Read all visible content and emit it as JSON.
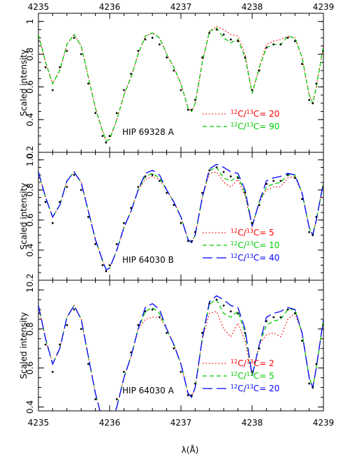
{
  "chart_data": {
    "type": "line",
    "xlabel": "λ(Å)",
    "ylabel": "Scaled intensity",
    "x_ticks": [
      "4235",
      "4236",
      "4237",
      "4238",
      "4239"
    ],
    "xlim": [
      4235,
      4239
    ],
    "panels": [
      {
        "label": "HIP 69328 A",
        "ylim": [
          0.2,
          1.05
        ],
        "y_ticks": [
          "0.2",
          "0.4",
          "0.6",
          "0.8",
          "1"
        ],
        "legend_position": "center-right",
        "series": [
          {
            "label_prefix": "12",
            "label_mid": "C/",
            "label_sup2": "13",
            "label_suffix": "C= 20",
            "color": "#ff0000",
            "style": "dotted",
            "profile": "clean"
          },
          {
            "label_prefix": "12",
            "label_mid": "C/",
            "label_sup2": "13",
            "label_suffix": "C= 90",
            "color": "#00cc00",
            "style": "dashed",
            "profile": "full"
          }
        ]
      },
      {
        "label": "HIP 64030 B",
        "ylim": [
          0.2,
          1.05
        ],
        "y_ticks": [
          "0.2",
          "0.4",
          "0.6",
          "0.8",
          "1.0"
        ],
        "legend_position": "bottom-right",
        "series": [
          {
            "label_prefix": "12",
            "label_mid": "C/",
            "label_sup2": "13",
            "label_suffix": "C= 5",
            "color": "#ff0000",
            "style": "dotted",
            "profile": "c13"
          },
          {
            "label_prefix": "12",
            "label_mid": "C/",
            "label_sup2": "13",
            "label_suffix": "C= 10",
            "color": "#00cc00",
            "style": "dashed",
            "profile": "c13mid"
          },
          {
            "label_prefix": "12",
            "label_mid": "C/",
            "label_sup2": "13",
            "label_suffix": "C= 40",
            "color": "#0000ff",
            "style": "longdash",
            "profile": "clean"
          }
        ]
      },
      {
        "label": "HIP 64030 A",
        "ylim": [
          0.38,
          1.05
        ],
        "y_ticks": [
          "0.4",
          "0.6",
          "0.8",
          "1",
          "0.2"
        ],
        "legend_position": "bottom-right",
        "series": [
          {
            "label_prefix": "12",
            "label_mid": "C/",
            "label_sup2": "13",
            "label_suffix": "C= 2",
            "color": "#ff0000",
            "style": "dotted",
            "profile": "c13strong"
          },
          {
            "label_prefix": "12",
            "label_mid": "C/",
            "label_sup2": "13",
            "label_suffix": "C= 5",
            "color": "#00cc00",
            "style": "dashed",
            "profile": "c13mid"
          },
          {
            "label_prefix": "12",
            "label_mid": "C/",
            "label_sup2": "13",
            "label_suffix": "C= 20",
            "color": "#0000ff",
            "style": "longdash",
            "profile": "clean"
          }
        ]
      }
    ],
    "profile_points": {
      "x": [
        4235.0,
        4235.1,
        4235.2,
        4235.3,
        4235.4,
        4235.5,
        4235.6,
        4235.7,
        4235.8,
        4235.9,
        4235.95,
        4236.0,
        4236.1,
        4236.2,
        4236.3,
        4236.4,
        4236.5,
        4236.6,
        4236.7,
        4236.8,
        4236.9,
        4237.0,
        4237.1,
        4237.15,
        4237.2,
        4237.3,
        4237.4,
        4237.5,
        4237.6,
        4237.7,
        4237.8,
        4237.9,
        4238.0,
        4238.1,
        4238.2,
        4238.3,
        4238.4,
        4238.5,
        4238.6,
        4238.7,
        4238.8,
        4238.85,
        4238.9,
        4239.0
      ],
      "clean": [
        0.92,
        0.75,
        0.62,
        0.7,
        0.86,
        0.92,
        0.85,
        0.66,
        0.47,
        0.33,
        0.27,
        0.28,
        0.4,
        0.55,
        0.66,
        0.8,
        0.91,
        0.93,
        0.9,
        0.8,
        0.72,
        0.62,
        0.47,
        0.45,
        0.5,
        0.75,
        0.94,
        0.97,
        0.95,
        0.92,
        0.91,
        0.8,
        0.56,
        0.72,
        0.86,
        0.88,
        0.89,
        0.91,
        0.9,
        0.78,
        0.55,
        0.5,
        0.6,
        0.85
      ],
      "full": [
        0.92,
        0.75,
        0.62,
        0.7,
        0.86,
        0.92,
        0.85,
        0.66,
        0.47,
        0.33,
        0.27,
        0.28,
        0.4,
        0.55,
        0.66,
        0.8,
        0.91,
        0.93,
        0.9,
        0.8,
        0.72,
        0.62,
        0.47,
        0.45,
        0.5,
        0.75,
        0.94,
        0.96,
        0.9,
        0.87,
        0.89,
        0.78,
        0.56,
        0.72,
        0.84,
        0.86,
        0.86,
        0.91,
        0.9,
        0.78,
        0.55,
        0.5,
        0.6,
        0.85
      ],
      "c13mid": [
        0.92,
        0.75,
        0.62,
        0.7,
        0.86,
        0.92,
        0.85,
        0.66,
        0.47,
        0.33,
        0.27,
        0.28,
        0.4,
        0.55,
        0.66,
        0.8,
        0.89,
        0.91,
        0.88,
        0.8,
        0.72,
        0.62,
        0.47,
        0.45,
        0.5,
        0.75,
        0.93,
        0.95,
        0.88,
        0.86,
        0.89,
        0.78,
        0.56,
        0.72,
        0.82,
        0.84,
        0.85,
        0.9,
        0.9,
        0.78,
        0.55,
        0.5,
        0.6,
        0.85
      ],
      "c13": [
        0.92,
        0.75,
        0.62,
        0.7,
        0.86,
        0.92,
        0.85,
        0.66,
        0.47,
        0.33,
        0.27,
        0.28,
        0.4,
        0.55,
        0.66,
        0.8,
        0.87,
        0.89,
        0.87,
        0.8,
        0.72,
        0.62,
        0.47,
        0.45,
        0.5,
        0.75,
        0.91,
        0.92,
        0.85,
        0.82,
        0.87,
        0.76,
        0.56,
        0.72,
        0.8,
        0.82,
        0.82,
        0.88,
        0.89,
        0.78,
        0.55,
        0.5,
        0.6,
        0.85
      ],
      "c13strong": [
        0.92,
        0.75,
        0.62,
        0.7,
        0.86,
        0.92,
        0.85,
        0.66,
        0.47,
        0.33,
        0.27,
        0.28,
        0.4,
        0.55,
        0.66,
        0.8,
        0.85,
        0.86,
        0.86,
        0.8,
        0.72,
        0.62,
        0.47,
        0.45,
        0.5,
        0.75,
        0.88,
        0.89,
        0.8,
        0.76,
        0.83,
        0.74,
        0.56,
        0.72,
        0.77,
        0.78,
        0.76,
        0.85,
        0.88,
        0.78,
        0.55,
        0.5,
        0.6,
        0.85
      ],
      "observed": [
        0.88,
        0.72,
        0.58,
        0.72,
        0.82,
        0.9,
        0.8,
        0.62,
        0.44,
        0.3,
        0.26,
        0.3,
        0.44,
        0.58,
        0.68,
        0.82,
        0.89,
        0.9,
        0.86,
        0.78,
        0.7,
        0.58,
        0.46,
        0.46,
        0.52,
        0.78,
        0.93,
        0.95,
        0.92,
        0.89,
        0.88,
        0.78,
        0.58,
        0.7,
        0.84,
        0.86,
        0.86,
        0.9,
        0.88,
        0.74,
        0.52,
        0.5,
        0.62,
        0.82
      ]
    }
  }
}
